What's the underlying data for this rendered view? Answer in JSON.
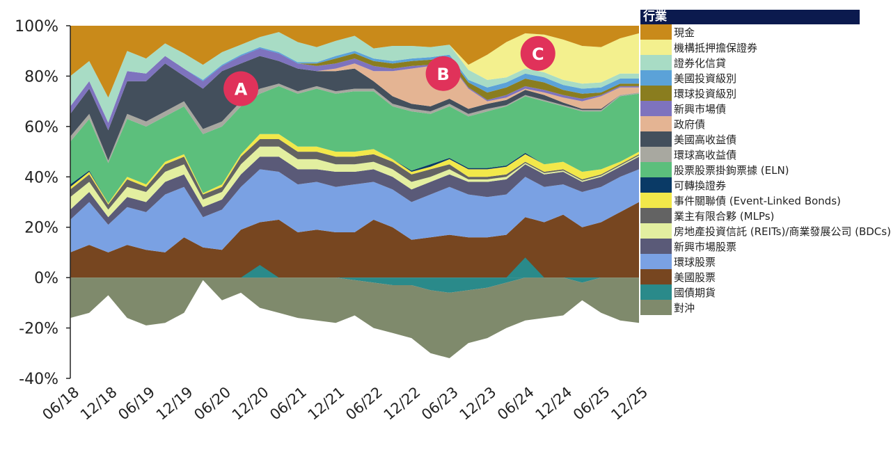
{
  "chart_data": {
    "type": "area",
    "stacked": true,
    "title": "",
    "xlabel": "",
    "ylabel": "",
    "ylim": [
      -40,
      100
    ],
    "yticks": [
      "100%",
      "80%",
      "60%",
      "40%",
      "20%",
      "0%",
      "-20%",
      "-40%"
    ],
    "ytick_values": [
      100,
      80,
      60,
      40,
      20,
      0,
      -20,
      -40
    ],
    "xticks": [
      "06/18",
      "12/18",
      "06/19",
      "12/19",
      "06/20",
      "12/20",
      "06/21",
      "12/21",
      "06/22",
      "12/22",
      "06/23",
      "12/23",
      "06/24",
      "12/24",
      "06/25",
      "12/25"
    ],
    "xtick_dates": [
      "2018-06",
      "2018-12",
      "2019-06",
      "2019-12",
      "2020-06",
      "2020-12",
      "2021-06",
      "2021-12",
      "2022-06",
      "2022-12",
      "2023-06",
      "2023-12",
      "2024-06",
      "2024-12",
      "2025-06",
      "2025-12"
    ],
    "grid": false,
    "legend": {
      "title": "行業",
      "placement": "right"
    },
    "x": [
      "2018-06",
      "2018-09",
      "2018-12",
      "2019-03",
      "2019-06",
      "2019-09",
      "2019-12",
      "2020-03",
      "2020-06",
      "2020-09",
      "2020-12",
      "2021-03",
      "2021-06",
      "2021-09",
      "2021-12",
      "2022-03",
      "2022-06",
      "2022-09",
      "2022-12",
      "2023-03",
      "2023-06",
      "2023-09",
      "2023-12",
      "2024-03",
      "2024-06",
      "2024-09",
      "2024-12",
      "2025-03",
      "2025-06",
      "2025-09",
      "2025-12"
    ],
    "series": [
      {
        "name": "現金",
        "color": "#c98a1a",
        "values": [
          12,
          10,
          22,
          7,
          12,
          4,
          8,
          14,
          4,
          5,
          3,
          3,
          7,
          6,
          3,
          2,
          5,
          2,
          3,
          3,
          2,
          3,
          2,
          4,
          2,
          3,
          2,
          2,
          3,
          3,
          1
        ]
      },
      {
        "name": "機構抵押擔保證券",
        "color": "#f3f08e",
        "values": [
          0,
          0,
          0,
          0,
          0,
          0,
          0,
          0,
          0,
          0,
          0,
          0,
          0,
          0,
          0,
          0,
          0,
          0,
          0,
          0,
          0,
          2,
          10,
          14,
          14,
          15,
          16,
          15,
          14,
          14,
          16
        ]
      },
      {
        "name": "證券化信貸",
        "color": "#a8dcc5",
        "values": [
          12,
          8,
          10,
          8,
          6,
          5,
          6,
          6,
          5,
          4,
          4,
          8,
          8,
          6,
          6,
          6,
          4,
          6,
          5,
          4,
          4,
          4,
          3,
          2,
          2,
          2,
          2,
          2,
          2,
          2,
          2
        ]
      },
      {
        "name": "美國投資級別",
        "color": "#5ba2d8",
        "values": [
          0,
          0,
          0,
          0,
          0,
          0,
          0,
          0.5,
          0.5,
          0.5,
          0.5,
          0.5,
          0.5,
          0.5,
          1,
          1,
          1,
          1,
          1,
          1,
          1,
          1,
          2,
          2,
          2,
          2,
          2,
          2,
          2,
          2,
          2
        ]
      },
      {
        "name": "環球投資級別",
        "color": "#8a7d1f",
        "values": [
          0,
          0,
          0,
          0,
          0,
          0,
          0,
          0,
          0,
          0,
          0,
          0,
          0,
          1,
          2,
          2,
          2,
          2,
          2,
          2,
          2,
          2,
          3,
          3,
          3,
          3,
          2,
          2,
          1,
          1,
          1
        ]
      },
      {
        "name": "新興市場債",
        "color": "#7e73be",
        "values": [
          3,
          3,
          3,
          4,
          3,
          3,
          3,
          3,
          2,
          3,
          3,
          3,
          2,
          2,
          2,
          2,
          2,
          1,
          1,
          0.5,
          0.5,
          0.5,
          0.5,
          1,
          1,
          1,
          1,
          1,
          0.5,
          0.5,
          0.5
        ]
      },
      {
        "name": "政府債",
        "color": "#e4b493",
        "values": [
          0,
          0,
          0,
          0,
          0,
          0,
          0,
          0,
          0,
          0,
          0,
          0,
          0,
          0,
          1,
          2,
          4,
          10,
          14,
          16,
          14,
          8,
          1,
          1,
          0.5,
          1,
          2,
          3,
          5,
          3,
          2
        ]
      },
      {
        "name": "美國高收益債",
        "color": "#434f5c",
        "values": [
          9,
          10,
          12,
          13,
          16,
          19,
          10,
          16,
          20,
          15,
          13,
          9,
          9,
          6,
          8,
          8,
          3,
          3,
          2,
          2,
          2,
          2,
          2,
          2,
          2,
          2,
          1,
          0.5,
          0.5,
          0,
          0
        ]
      },
      {
        "name": "環球高收益債",
        "color": "#a8a8a0",
        "values": [
          2,
          2,
          1,
          2,
          2,
          2,
          2,
          2,
          2,
          2,
          2,
          1,
          1,
          1,
          1,
          1,
          1,
          1,
          1,
          1,
          1,
          1,
          1,
          0.5,
          0.5,
          0.5,
          0.5,
          0.5,
          0.5,
          0.5,
          0.5
        ]
      },
      {
        "name": "股票股票掛鉤票據 (ELN)",
        "color": "#5cbf7c",
        "values": [
          17,
          20.5,
          16,
          23,
          23,
          18,
          19,
          23.5,
          23,
          19,
          16,
          19,
          21,
          23,
          23,
          24,
          23,
          21,
          23.5,
          20,
          20.5,
          20.5,
          22.5,
          23.5,
          22.5,
          25,
          22,
          24,
          23,
          26,
          23
        ]
      },
      {
        "name": "可轉換證券",
        "color": "#0a3a66",
        "values": [
          1,
          0.5,
          0,
          0,
          0,
          0,
          0,
          0,
          0,
          0,
          0,
          0,
          0,
          0,
          0,
          0,
          0,
          0,
          0.5,
          1,
          0.5,
          0.5,
          0.5,
          0.5,
          0.5,
          0,
          0,
          0,
          0,
          0,
          0
        ]
      },
      {
        "name": "事件關聯債 (Event-Linked Bonds)",
        "color": "#f2e84a",
        "values": [
          1,
          1,
          0.5,
          1,
          1,
          1,
          1,
          0.5,
          1,
          1,
          2,
          2,
          2,
          2,
          2,
          2,
          2,
          1,
          1,
          1,
          2,
          3,
          3,
          3,
          3,
          3,
          3,
          3,
          2,
          1,
          1
        ]
      },
      {
        "name": "業主有限合夥 (MLPs)",
        "color": "#636363",
        "values": [
          3,
          3,
          2,
          3,
          2,
          3,
          3,
          2,
          2,
          3,
          3,
          3,
          3,
          3,
          3,
          3,
          3,
          3,
          3,
          3,
          2,
          1,
          1,
          1,
          0.5,
          0.5,
          0.5,
          0.5,
          0.5,
          0.5,
          0.5
        ]
      },
      {
        "name": "房地產投資信託 (REITs)/商業發展公司 (BDCs)",
        "color": "#e3efa0",
        "values": [
          5,
          4,
          3,
          4,
          4,
          4,
          4,
          3,
          3,
          4,
          4,
          4,
          4,
          4,
          3,
          3,
          3,
          3,
          3,
          2,
          2,
          1,
          1,
          1,
          0.5,
          0.5,
          0.5,
          0.5,
          0.5,
          0.5,
          0.5
        ]
      },
      {
        "name": "新興市場股票",
        "color": "#5a5a78",
        "values": [
          4,
          4,
          3,
          4,
          4,
          5,
          5,
          4,
          4,
          5,
          5,
          6,
          6,
          5,
          6,
          5,
          5,
          5,
          5,
          5,
          5,
          5,
          6,
          6,
          5,
          5,
          5,
          4,
          4,
          4,
          5
        ]
      },
      {
        "name": "環球股票",
        "color": "#7aa1e3",
        "values": [
          13,
          17,
          11,
          15,
          15,
          23,
          20,
          12,
          16,
          17,
          21,
          19,
          19,
          19,
          18,
          19,
          15,
          15,
          15,
          17,
          19,
          17,
          16,
          16,
          16,
          14,
          12,
          14,
          14,
          14,
          13
        ]
      },
      {
        "name": "美國股票",
        "color": "#774620",
        "values": [
          10,
          13,
          10,
          13,
          11,
          10,
          16,
          12,
          11,
          19,
          22,
          23,
          18,
          19,
          18,
          18,
          23,
          20,
          15,
          16,
          17,
          16,
          16,
          17,
          24,
          22,
          25,
          20,
          22,
          26,
          30
        ]
      },
      {
        "name": "國債期貨",
        "color": "#2a8a8a",
        "values": [
          0,
          0,
          0,
          0,
          0,
          0,
          0,
          0,
          0,
          0,
          5,
          0,
          0,
          0,
          0,
          -1,
          -2,
          -3,
          -3,
          -5,
          -6,
          -5,
          -4,
          -2,
          8,
          0,
          0,
          -2,
          0,
          0,
          0
        ]
      },
      {
        "name": "對沖",
        "color": "#7f8a6c",
        "values": [
          -16,
          -14,
          -7,
          -16,
          -19,
          -18,
          -14,
          -1,
          -9,
          -6,
          -12,
          -14,
          -16,
          -17,
          -18,
          -14,
          -18,
          -19,
          -21,
          -25,
          -26,
          -21,
          -20,
          -18,
          -17,
          -16,
          -15,
          -7,
          -14,
          -17,
          -18
        ]
      }
    ],
    "annotations": [
      {
        "label": "A",
        "x": "2020-09",
        "y": 75,
        "color": "#e0325a"
      },
      {
        "label": "B",
        "x": "2023-05",
        "y": 81,
        "color": "#e0325a"
      },
      {
        "label": "C",
        "x": "2024-08",
        "y": 89,
        "color": "#e0325a"
      }
    ]
  }
}
